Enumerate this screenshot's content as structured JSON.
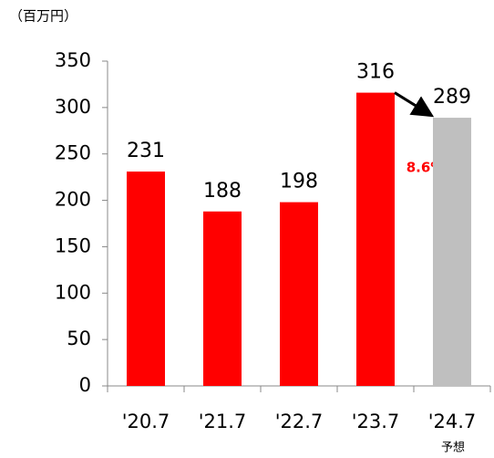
{
  "chart_data": {
    "type": "bar",
    "unit_label": "（百万円）",
    "categories": [
      "'20.7",
      "'21.7",
      "'22.7",
      "'23.7",
      "'24.7"
    ],
    "values": [
      231,
      188,
      198,
      316,
      289
    ],
    "colors": [
      "#ff0000",
      "#ff0000",
      "#ff0000",
      "#ff0000",
      "#bfbfbf"
    ],
    "ylim": [
      0,
      350
    ],
    "yticks": [
      0,
      50,
      100,
      150,
      200,
      250,
      300,
      350
    ],
    "annotation": "8.6%減",
    "forecast_label": "予想"
  }
}
